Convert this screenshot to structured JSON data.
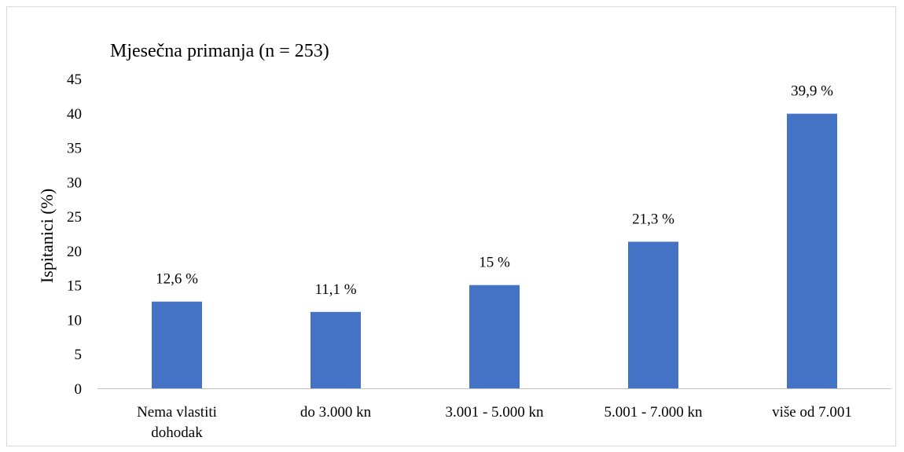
{
  "chart_data": {
    "type": "bar",
    "title": "Mjesečna primanja (n = 253)",
    "xlabel": "",
    "ylabel": "Ispitanici (%)",
    "ylim": [
      0,
      45
    ],
    "yticks": [
      0,
      5,
      10,
      15,
      20,
      25,
      30,
      35,
      40,
      45
    ],
    "categories": [
      [
        "Nema vlastiti",
        "dohodak"
      ],
      [
        "do 3.000 kn"
      ],
      [
        "3.001 - 5.000 kn"
      ],
      [
        "5.001 - 7.000 kn"
      ],
      [
        "više od 7.001"
      ]
    ],
    "values": [
      12.6,
      11.1,
      15,
      21.3,
      39.9
    ],
    "data_labels": [
      "12,6 %",
      "11,1 %",
      "15 %",
      "21,3 %",
      "39,9 %"
    ],
    "bar_color": "#4472c4",
    "axis_color": "#bfbfbf",
    "grid": false,
    "legend": "none"
  }
}
